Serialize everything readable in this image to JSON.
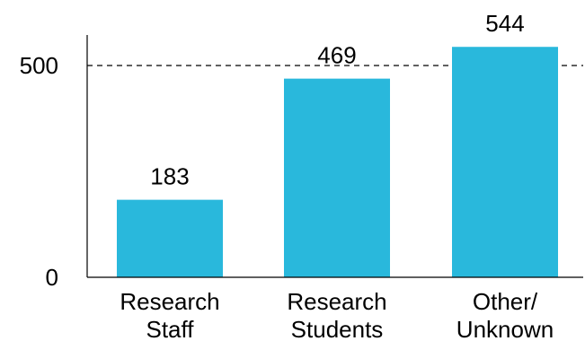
{
  "chart_data": {
    "type": "bar",
    "categories": [
      [
        "Research",
        "Staff"
      ],
      [
        "Research",
        "Students"
      ],
      [
        "Other/",
        "Unknown"
      ]
    ],
    "values": [
      183,
      469,
      544
    ],
    "data_labels": [
      "183",
      "469",
      "544"
    ],
    "yticks": [
      {
        "value": 0,
        "label": "0"
      },
      {
        "value": 500,
        "label": "500"
      }
    ],
    "reference_line": {
      "value": 500,
      "style": "dashed"
    },
    "ylim": [
      0,
      629
    ],
    "grid": false,
    "colors": {
      "bar": "#29b8dc",
      "axis": "#000000",
      "reference": "#000000"
    }
  }
}
